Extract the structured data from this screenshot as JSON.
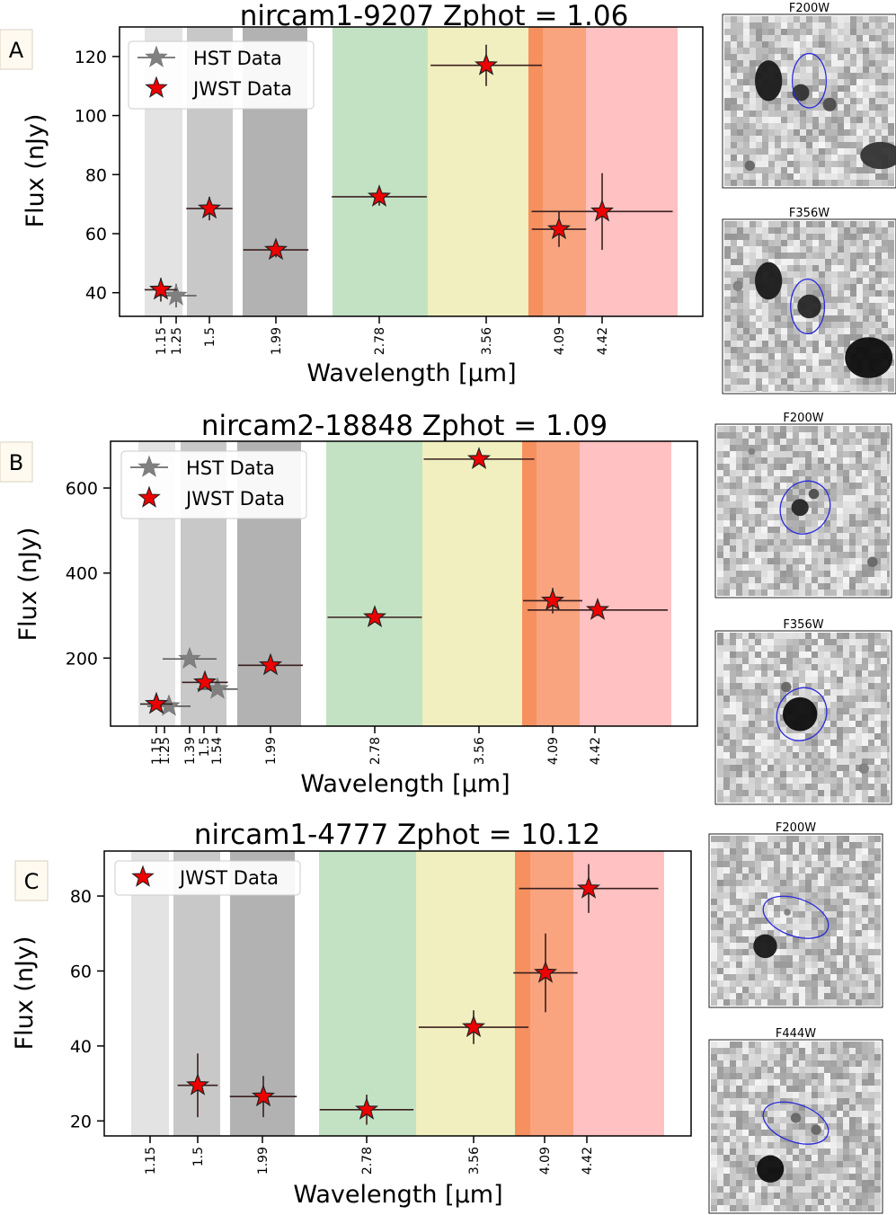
{
  "chart_data": [
    {
      "type": "scatter",
      "panel_label": "A",
      "title": "nircam1-9207 Zphot = 1.06",
      "xlabel": "Wavelength [μm]",
      "ylabel": "Flux (nJy)",
      "ylim": [
        32,
        130
      ],
      "yticks": [
        40,
        60,
        80,
        100,
        120
      ],
      "xticks": [
        "1.15",
        "1.25",
        "1.5",
        "1.99",
        "2.78",
        "3.56",
        "4.09",
        "4.42"
      ],
      "legend": [
        "HST Data",
        "JWST Data"
      ],
      "legend_location": "upper-left",
      "series": [
        {
          "name": "HST Data",
          "points": [
            {
              "x": 1.25,
              "y": 39,
              "xerr": 0.15,
              "yerr": 4
            }
          ]
        },
        {
          "name": "JWST Data",
          "points": [
            {
              "x": 1.15,
              "y": 41,
              "xerr": 0.12,
              "yerr": 4
            },
            {
              "x": 1.5,
              "y": 68.5,
              "xerr": 0.17,
              "yerr": 4
            },
            {
              "x": 1.99,
              "y": 54.5,
              "xerr": 0.24,
              "yerr": 2.5
            },
            {
              "x": 2.78,
              "y": 72.5,
              "xerr": 0.35,
              "yerr": 3
            },
            {
              "x": 3.56,
              "y": 117,
              "xerr": 0.41,
              "yerr": 7
            },
            {
              "x": 4.09,
              "y": 61.5,
              "xerr": 0.2,
              "yerr": 6
            },
            {
              "x": 4.42,
              "y": 67.5,
              "xerr": 0.52,
              "yerr": 13
            }
          ]
        }
      ],
      "cutouts": [
        "F200W",
        "F356W"
      ]
    },
    {
      "type": "scatter",
      "panel_label": "B",
      "title": "nircam2-18848 Zphot = 1.09",
      "xlabel": "Wavelength [μm]",
      "ylabel": "Flux (nJy)",
      "ylim": [
        40,
        710
      ],
      "yticks": [
        200,
        400,
        600
      ],
      "xticks": [
        "1.15",
        "1.25",
        "1.39",
        "1.5",
        "1.54",
        "1.99",
        "2.78",
        "3.56",
        "4.09",
        "4.42"
      ],
      "legend": [
        "HST Data",
        "JWST Data"
      ],
      "legend_location": "upper-left",
      "series": [
        {
          "name": "HST Data",
          "points": [
            {
              "x": 1.25,
              "y": 87,
              "xerr": 0.16,
              "yerr": 8
            },
            {
              "x": 1.39,
              "y": 198,
              "xerr": 0.2,
              "yerr": 8
            },
            {
              "x": 1.54,
              "y": 127,
              "xerr": 0.15,
              "yerr": 8
            }
          ]
        },
        {
          "name": "JWST Data",
          "points": [
            {
              "x": 1.15,
              "y": 92,
              "xerr": 0.12,
              "yerr": 12
            },
            {
              "x": 1.5,
              "y": 143,
              "xerr": 0.17,
              "yerr": 12
            },
            {
              "x": 1.99,
              "y": 183,
              "xerr": 0.24,
              "yerr": 10
            },
            {
              "x": 2.78,
              "y": 296,
              "xerr": 0.35,
              "yerr": 10
            },
            {
              "x": 3.56,
              "y": 668,
              "xerr": 0.41,
              "yerr": 12
            },
            {
              "x": 4.09,
              "y": 335,
              "xerr": 0.22,
              "yerr": 30
            },
            {
              "x": 4.42,
              "y": 313,
              "xerr": 0.52,
              "yerr": 14
            }
          ]
        }
      ],
      "cutouts": [
        "F200W",
        "F356W"
      ]
    },
    {
      "type": "scatter",
      "panel_label": "C",
      "title": "nircam1-4777 Zphot = 10.12",
      "xlabel": "Wavelength [μm]",
      "ylabel": "Flux (nJy)",
      "ylim": [
        16,
        92
      ],
      "yticks": [
        20,
        40,
        60,
        80
      ],
      "xticks": [
        "1.15",
        "1.5",
        "1.99",
        "2.78",
        "3.56",
        "4.09",
        "4.42"
      ],
      "legend": [
        "JWST Data"
      ],
      "legend_location": "upper-left",
      "series": [
        {
          "name": "JWST Data",
          "points": [
            {
              "x": 1.5,
              "y": 29.5,
              "xerr": 0.15,
              "yerr": 8.5
            },
            {
              "x": 1.99,
              "y": 26.5,
              "xerr": 0.25,
              "yerr": 5.5
            },
            {
              "x": 2.78,
              "y": 23,
              "xerr": 0.35,
              "yerr": 4
            },
            {
              "x": 3.56,
              "y": 45,
              "xerr": 0.41,
              "yerr": 4.5
            },
            {
              "x": 4.09,
              "y": 59.5,
              "xerr": 0.24,
              "yerr": 10.5
            },
            {
              "x": 4.42,
              "y": 82,
              "xerr": 0.52,
              "yerr": 6.5
            }
          ]
        }
      ],
      "cutouts": [
        "F200W",
        "F444W"
      ]
    }
  ],
  "colors": {
    "band_f115": "#e3e3e3",
    "band_f150": "#c8c8c8",
    "band_f200": "#b2b2b2",
    "band_f277": "#c3e2c3",
    "band_f356": "#f1efbf",
    "band_f410": "#f9a47e",
    "band_f410b": "#f6905f",
    "band_f444": "#ffc1c1",
    "hst": "#808080",
    "jwst": "#ee0000",
    "ellipse": "#2a2add"
  }
}
